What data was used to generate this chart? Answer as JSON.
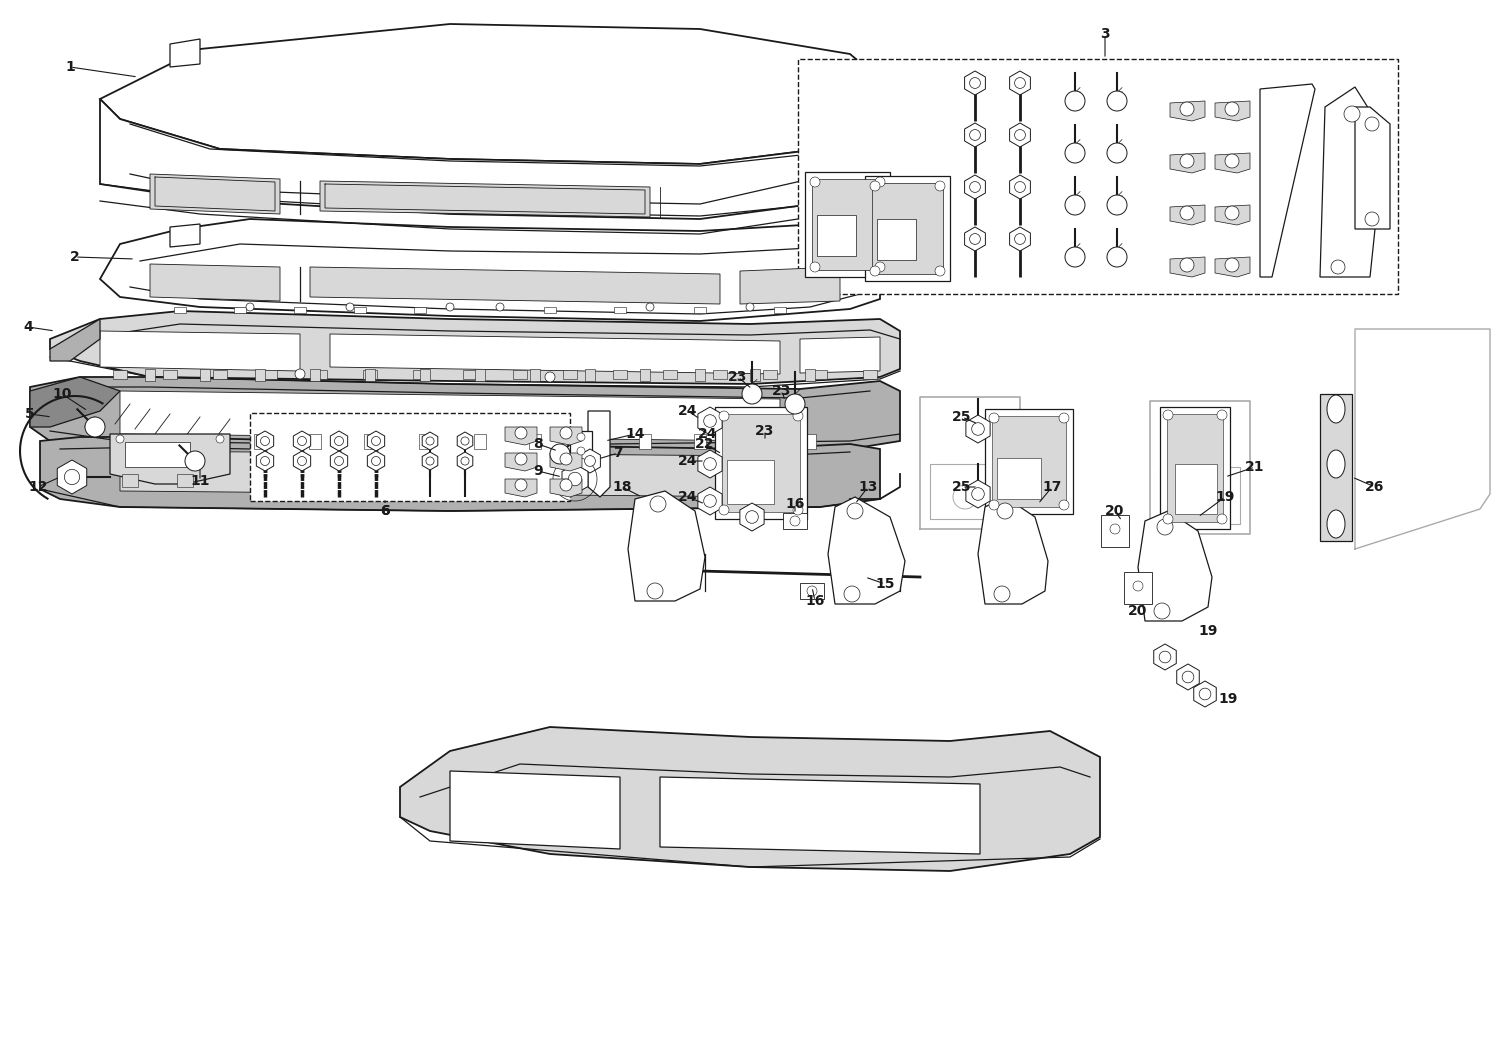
{
  "bg_color": "#ffffff",
  "lc": "#1a1a1a",
  "gray": "#b0b0b0",
  "lgray": "#d8d8d8",
  "dgray": "#888888"
}
